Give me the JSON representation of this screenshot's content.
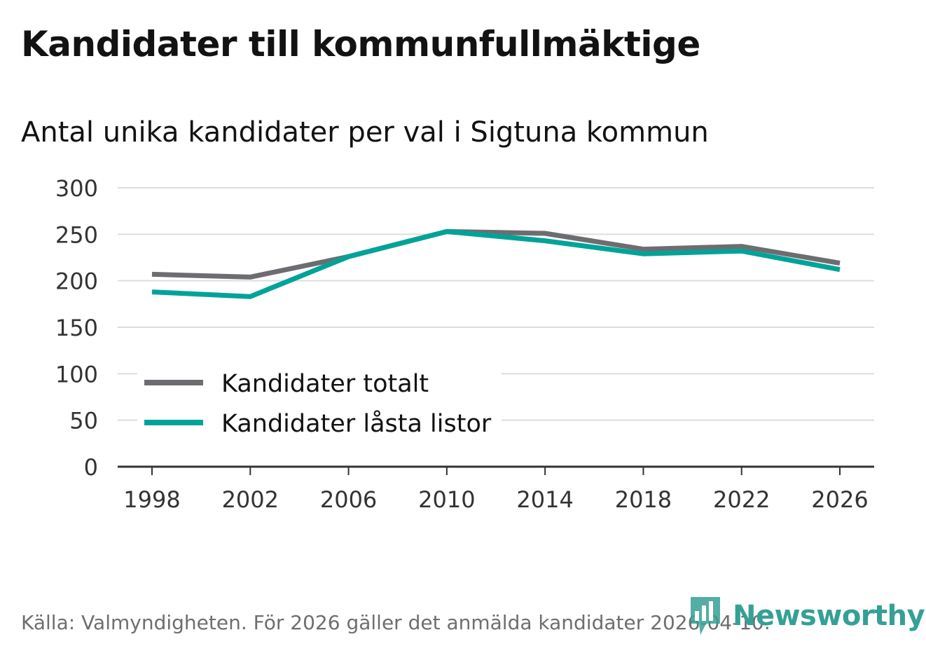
{
  "title": "Kandidater till kommunfullmäktige",
  "subtitle": "Antal unika kandidater per val i Sigtuna kommun",
  "source": "Källa: Valmyndigheten. För 2026 gäller det anmälda kandidater 2026-04-10.",
  "logo_text": "Newsworthy",
  "colors": {
    "total": "#6d6d71",
    "locked": "#00a398",
    "grid": "#dddddd",
    "axis": "#333333",
    "logo": "#35a095"
  },
  "chart_data": {
    "type": "line",
    "title": "Kandidater till kommunfullmäktige",
    "subtitle": "Antal unika kandidater per val i Sigtuna kommun",
    "xlabel": "",
    "ylabel": "",
    "x": [
      "1998",
      "2002",
      "2006",
      "2010",
      "2014",
      "2018",
      "2022",
      "2026"
    ],
    "ylim": [
      0,
      300
    ],
    "yticks": [
      0,
      50,
      100,
      150,
      200,
      250,
      300
    ],
    "grid": true,
    "legend": "lower-left",
    "series": [
      {
        "name": "Kandidater totalt",
        "values": [
          207,
          204,
          226,
          253,
          251,
          234,
          237,
          219
        ]
      },
      {
        "name": "Kandidater låsta listor",
        "values": [
          188,
          183,
          226,
          253,
          243,
          229,
          232,
          212
        ]
      }
    ]
  }
}
